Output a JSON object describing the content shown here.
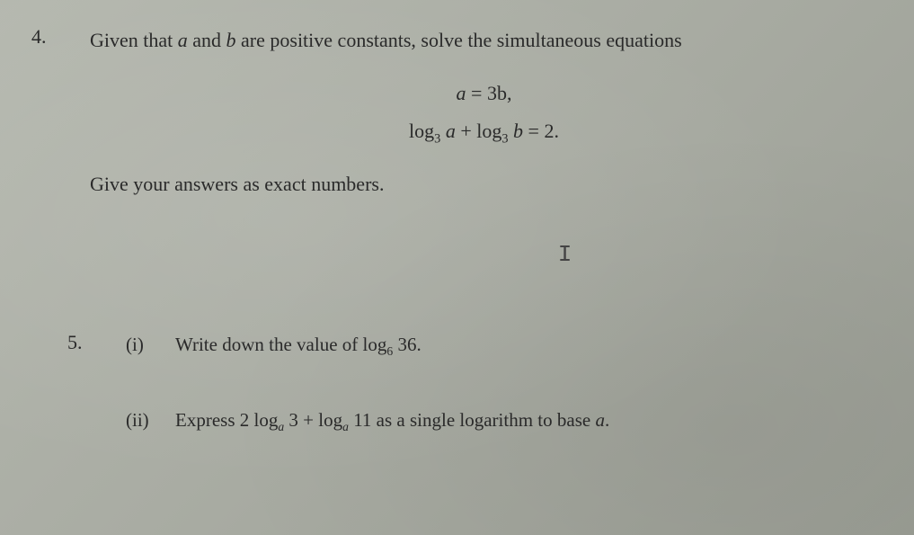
{
  "q4": {
    "number": "4.",
    "line1_pre": "Given that ",
    "a": "a",
    "and": " and ",
    "b": "b",
    "line1_post": " are positive constants, solve the simultaneous equations",
    "eq1_lhs": "a",
    "eq1_rhs": " = 3b,",
    "eq2_log1": "log",
    "eq2_sub1": "3",
    "eq2_a": " a",
    "eq2_plus": " + ",
    "eq2_log2": "log",
    "eq2_sub2": "3",
    "eq2_b": " b",
    "eq2_rhs": " = 2.",
    "line2": "Give your answers as exact numbers.",
    "cursor": "I"
  },
  "q5": {
    "number": "5.",
    "parts": [
      {
        "label": "(i)",
        "pre": "Write down the value of ",
        "log": "log",
        "sub": "6",
        "post": " 36."
      },
      {
        "label": "(ii)",
        "pre": "Express 2 ",
        "log1": "log",
        "sub1": "a",
        "mid1": " 3 + ",
        "log2": "log",
        "sub2": "a",
        "mid2": " 11 as a single logarithm to base ",
        "base": "a",
        "post": "."
      }
    ]
  }
}
